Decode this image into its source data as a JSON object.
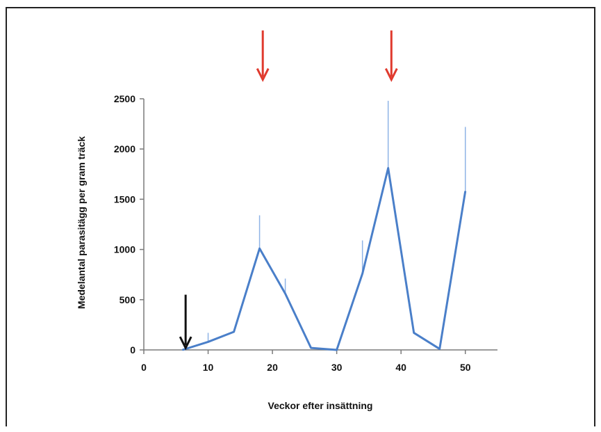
{
  "chart_data": {
    "type": "line",
    "title": "",
    "xlabel": "Veckor efter insättning",
    "ylabel": "Medelantal parasitägg per gram träck",
    "xlim": [
      0,
      55
    ],
    "ylim": [
      0,
      2500
    ],
    "xticks": [
      0,
      10,
      20,
      30,
      40,
      50
    ],
    "yticks": [
      0,
      500,
      1000,
      1500,
      2000,
      2500
    ],
    "grid": false,
    "legend": "none",
    "series": [
      {
        "color": "#4a7fc9",
        "x": [
          6,
          10,
          14,
          18,
          22,
          26,
          30,
          34,
          38,
          42,
          46,
          50
        ],
        "values": [
          0,
          80,
          180,
          1010,
          560,
          20,
          0,
          760,
          1810,
          170,
          10,
          1580
        ],
        "error_upper": [
          0,
          170,
          180,
          1340,
          710,
          20,
          0,
          1090,
          2480,
          170,
          10,
          2220
        ]
      }
    ],
    "annotations": [
      {
        "kind": "arrow",
        "color": "#111111",
        "x": 6.5,
        "y_from": 550,
        "y_to": 20
      },
      {
        "kind": "arrow",
        "color": "#e03a2e",
        "x": 18.5,
        "y_from": 3180,
        "y_to": 2690
      },
      {
        "kind": "arrow",
        "color": "#e03a2e",
        "x": 38.5,
        "y_from": 3180,
        "y_to": 2690
      }
    ]
  }
}
